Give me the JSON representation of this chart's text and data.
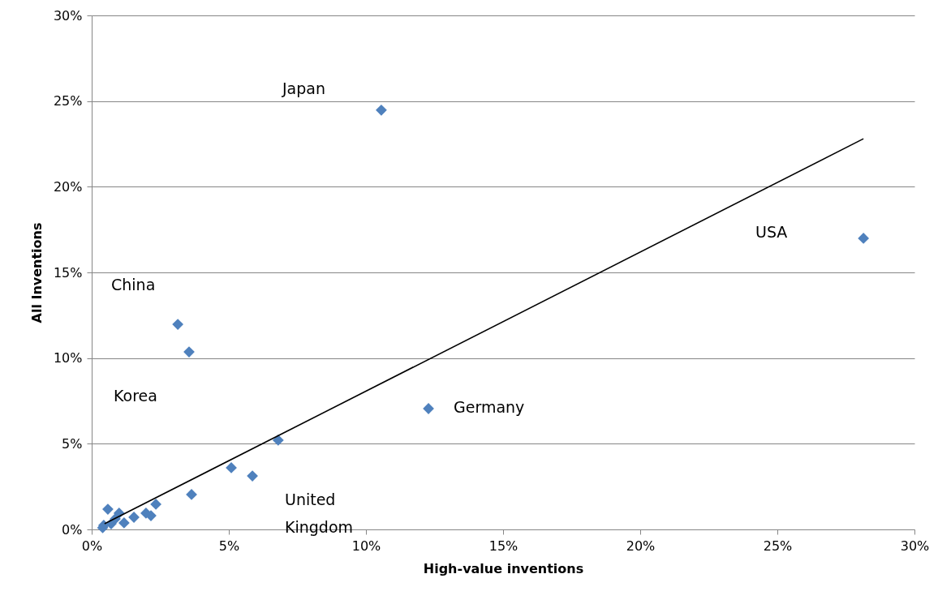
{
  "chart_data": {
    "type": "scatter",
    "xlabel": "High-value inventions",
    "ylabel": "All Inventions",
    "xlim": [
      0,
      30
    ],
    "ylim": [
      0,
      30
    ],
    "xticks": [
      {
        "value": 0,
        "label": "0%"
      },
      {
        "value": 5,
        "label": "5%"
      },
      {
        "value": 10,
        "label": "10%"
      },
      {
        "value": 15,
        "label": "15%"
      },
      {
        "value": 20,
        "label": "20%"
      },
      {
        "value": 25,
        "label": "25%"
      },
      {
        "value": 30,
        "label": "30%"
      }
    ],
    "yticks": [
      {
        "value": 0,
        "label": "0%"
      },
      {
        "value": 5,
        "label": "5%"
      },
      {
        "value": 10,
        "label": "10%"
      },
      {
        "value": 15,
        "label": "15%"
      },
      {
        "value": 20,
        "label": "20%"
      },
      {
        "value": 25,
        "label": "25%"
      },
      {
        "value": 30,
        "label": "30%"
      }
    ],
    "grid": "y",
    "legend": false,
    "marker": "diamond",
    "series": [
      {
        "color": "#4f81bd",
        "x": [
          10.56,
          28.14,
          3.14,
          3.55,
          12.28,
          6.8,
          5.09,
          5.86,
          3.64,
          2.34,
          2.16,
          1.98,
          1.54,
          1.18,
          1.0,
          0.59,
          0.86,
          0.71,
          0.44,
          0.4
        ],
        "values": [
          24.47,
          16.99,
          11.97,
          10.36,
          7.05,
          5.21,
          3.6,
          3.12,
          2.04,
          1.47,
          0.8,
          0.95,
          0.71,
          0.38,
          0.95,
          1.18,
          0.62,
          0.33,
          0.24,
          0.1
        ]
      },
      {
        "type": "line",
        "marker": "none",
        "color": "#000000",
        "x": [
          0.47,
          28.14
        ],
        "values": [
          0.33,
          22.8
        ]
      }
    ],
    "annotations": [
      "Japan",
      "USA",
      "China",
      "Korea",
      "Germany",
      "United\nKingdom"
    ]
  }
}
